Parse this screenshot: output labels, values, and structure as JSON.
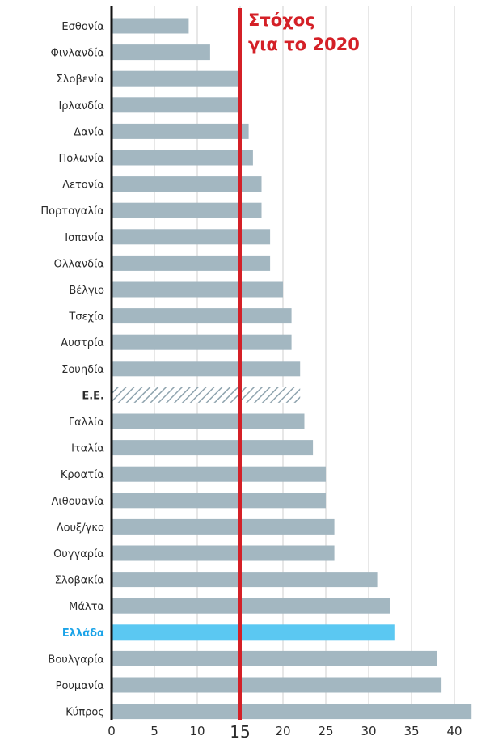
{
  "chart_data": {
    "type": "bar",
    "orientation": "horizontal",
    "categories": [
      "Εσθονία",
      "Φινλανδία",
      "Σλοβενία",
      "Ιρλανδία",
      "Δανία",
      "Πολωνία",
      "Λετονία",
      "Πορτογαλία",
      "Ισπανία",
      "Ολλανδία",
      "Βέλγιο",
      "Τσεχία",
      "Αυστρία",
      "Σουηδία",
      "Ε.Ε.",
      "Γαλλία",
      "Ιταλία",
      "Κροατία",
      "Λιθουανία",
      "Λουξ/γκο",
      "Ουγγαρία",
      "Σλοβακία",
      "Μάλτα",
      "Ελλάδα",
      "Βουλγαρία",
      "Ρουμανία",
      "Κύπρος"
    ],
    "values": [
      9,
      11.5,
      15,
      15,
      16,
      16.5,
      17.5,
      17.5,
      18.5,
      18.5,
      20,
      21,
      21,
      22,
      22,
      22.5,
      23.5,
      25,
      25,
      26,
      26,
      31,
      32.5,
      33,
      38,
      38.5,
      42
    ],
    "highlight_category": "Ελλάδα",
    "average_category": "Ε.Ε.",
    "xticks": [
      0,
      5,
      10,
      15,
      20,
      25,
      30,
      35,
      40
    ],
    "xlim": [
      0,
      42
    ],
    "grid": true,
    "target": {
      "value": 15,
      "label_line1": "Στόχος",
      "label_line2": "για το 2020"
    },
    "colors": {
      "bar": "#a3b7c1",
      "highlight": "#5bc8f2",
      "target": "#d42027",
      "axis": "#111111",
      "avg_hatch": "#8ea3ae"
    }
  }
}
